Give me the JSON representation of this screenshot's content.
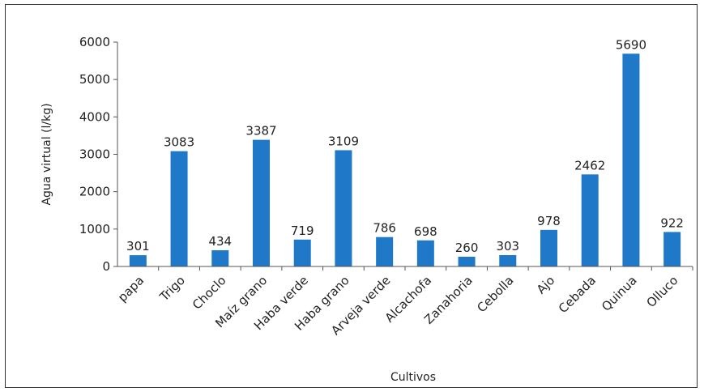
{
  "chart_data": {
    "type": "bar",
    "title": "",
    "xlabel": "Cultivos",
    "ylabel": "Agua virtual (l/kg)",
    "ylim": [
      0,
      6000
    ],
    "yticks": [
      0,
      1000,
      2000,
      3000,
      4000,
      5000,
      6000
    ],
    "grid": false,
    "bar_color": "#1f78c8",
    "categories": [
      "papa",
      "Trigo",
      "Choclo",
      "Maíz grano",
      "Haba verde",
      "Haba grano",
      "Arveja verde",
      "Alcachofa",
      "Zanahoria",
      "Cebolla",
      "Ajo",
      "Cebada",
      "Quinua",
      "Olluco"
    ],
    "values": [
      301,
      3083,
      434,
      3387,
      719,
      3109,
      786,
      698,
      260,
      303,
      978,
      2462,
      5690,
      922
    ]
  }
}
